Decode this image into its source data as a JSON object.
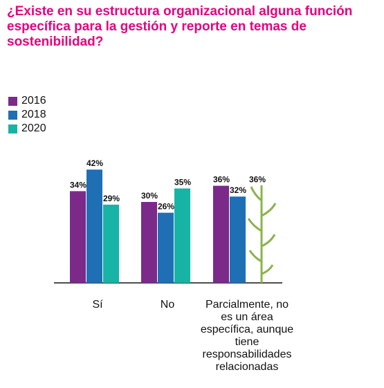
{
  "title": "¿Existe en su estructura organizacional alguna función específica para la gestión y reporte en temas de sostenibilidad?",
  "chart_data": {
    "type": "bar",
    "title": "¿Existe en su estructura organizacional alguna función específica para la gestión y reporte en temas de sostenibilidad?",
    "categories": [
      "Sí",
      "No",
      "Parcialmente, no es un área específica, aunque tiene responsabilidades relacionadas"
    ],
    "series": [
      {
        "name": "2016",
        "values": [
          34,
          30,
          36
        ],
        "labels": [
          "34%",
          "30%",
          "36%"
        ],
        "color": "#7b2a8a"
      },
      {
        "name": "2018",
        "values": [
          42,
          26,
          32
        ],
        "labels": [
          "42%",
          "26%",
          "32%"
        ],
        "color": "#1f6fb5"
      },
      {
        "name": "2020",
        "values": [
          29,
          35,
          36
        ],
        "labels": [
          "29%",
          "35%",
          "36%"
        ],
        "color": "#17b3a5"
      }
    ],
    "ylim": [
      0,
      50
    ],
    "legend": "top-left",
    "grid": false
  }
}
